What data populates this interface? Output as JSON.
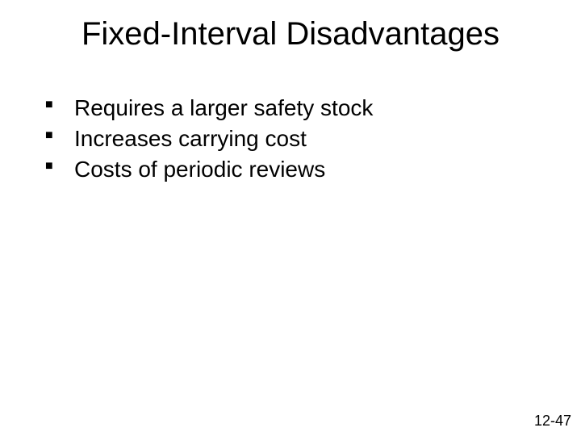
{
  "slide": {
    "title": "Fixed-Interval Disadvantages",
    "bullets": [
      "Requires a larger safety stock",
      "Increases carrying cost",
      "Costs of periodic reviews"
    ],
    "pageNumber": "12-47"
  },
  "style": {
    "background_color": "#ffffff",
    "title_fontsize": 40,
    "title_color": "#000000",
    "bullet_fontsize": 28,
    "bullet_color": "#000000",
    "bullet_marker": "■",
    "page_number_fontsize": 18,
    "font_family": "Arial"
  }
}
